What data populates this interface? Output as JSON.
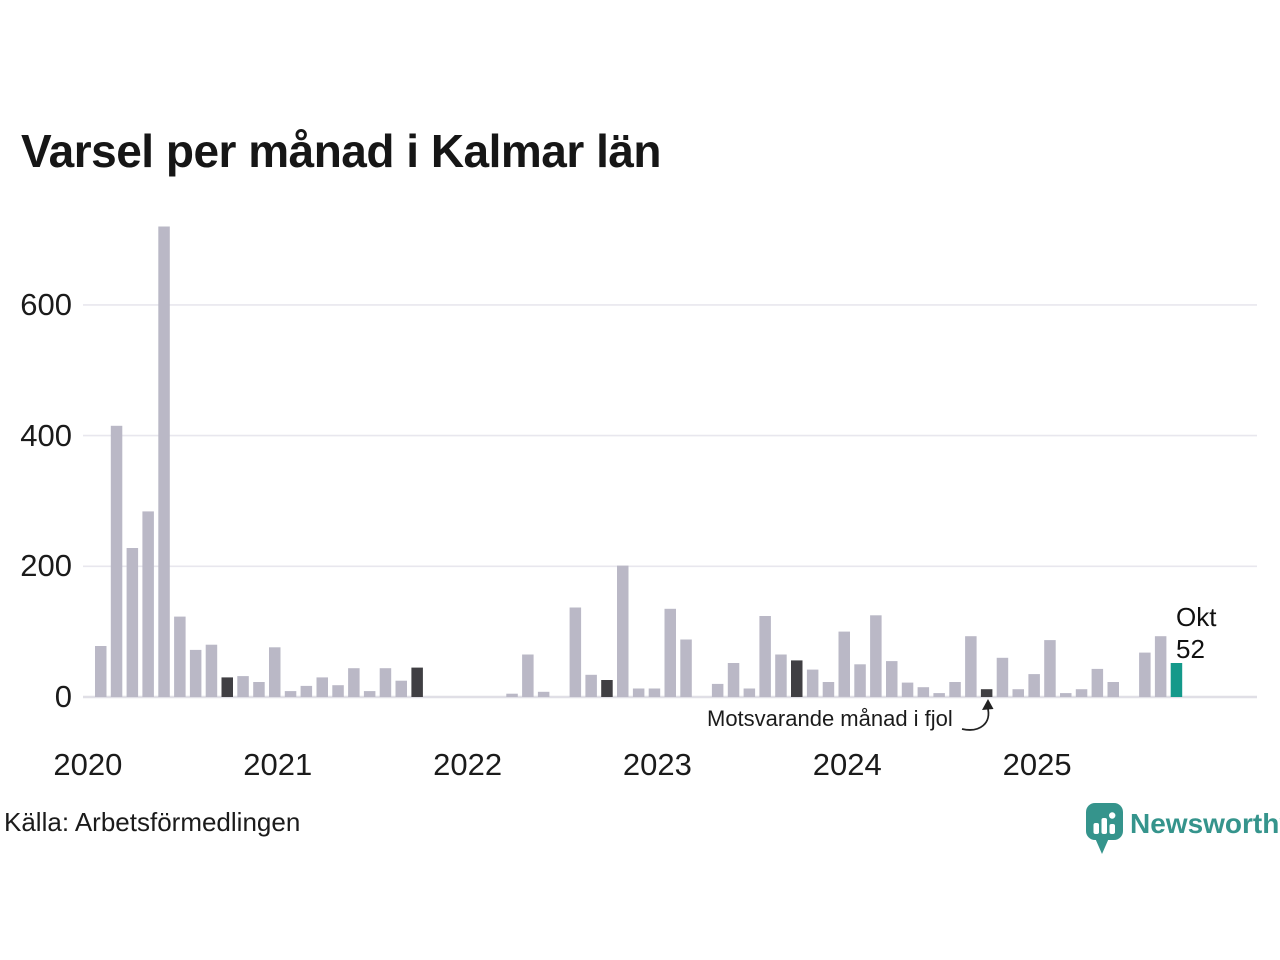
{
  "header": {
    "title": "Varsel per månad i Kalmar län"
  },
  "annotation": {
    "text": "Motsvarande månad i fjol"
  },
  "last_point_label": {
    "month": "Okt",
    "value": "52"
  },
  "footer": {
    "source": "Källa: Arbetsförmedlingen",
    "brand": "Newsworthy"
  },
  "colors": {
    "bar": "#bab8c6",
    "dark": "#403f43",
    "teal": "#14998a",
    "grid": "#e8e7ee",
    "axis": "#e0dfe6",
    "text": "#1b1b1b",
    "brand": "#35948c",
    "annotation_arrow": "#222222"
  },
  "chart_data": {
    "type": "bar",
    "title": "Varsel per månad i Kalmar län",
    "xlabel": "",
    "ylabel": "",
    "ylim": [
      0,
      730
    ],
    "yticks": [
      0,
      200,
      400,
      600
    ],
    "xticks": [
      "2020",
      "2021",
      "2022",
      "2023",
      "2024",
      "2025"
    ],
    "grid": "horizontal",
    "legend": "none",
    "x": [
      "2020-01",
      "2020-02",
      "2020-03",
      "2020-04",
      "2020-05",
      "2020-06",
      "2020-07",
      "2020-08",
      "2020-09",
      "2020-10",
      "2020-11",
      "2020-12",
      "2021-01",
      "2021-02",
      "2021-03",
      "2021-04",
      "2021-05",
      "2021-06",
      "2021-07",
      "2021-08",
      "2021-09",
      "2021-10",
      "2021-11",
      "2021-12",
      "2022-01",
      "2022-02",
      "2022-03",
      "2022-04",
      "2022-05",
      "2022-06",
      "2022-07",
      "2022-08",
      "2022-09",
      "2022-10",
      "2022-11",
      "2022-12",
      "2023-01",
      "2023-02",
      "2023-03",
      "2023-04",
      "2023-05",
      "2023-06",
      "2023-07",
      "2023-08",
      "2023-09",
      "2023-10",
      "2023-11",
      "2023-12",
      "2024-01",
      "2024-02",
      "2024-03",
      "2024-04",
      "2024-05",
      "2024-06",
      "2024-07",
      "2024-08",
      "2024-09",
      "2024-10",
      "2024-11",
      "2024-12",
      "2025-01",
      "2025-02",
      "2025-03",
      "2025-04",
      "2025-05",
      "2025-06",
      "2025-07",
      "2025-08",
      "2025-09",
      "2025-10"
    ],
    "values": [
      0,
      78,
      415,
      228,
      284,
      720,
      123,
      72,
      80,
      30,
      32,
      23,
      76,
      9,
      17,
      30,
      18,
      44,
      9,
      44,
      25,
      45,
      0,
      0,
      0,
      0,
      0,
      5,
      65,
      8,
      0,
      137,
      34,
      26,
      201,
      13,
      13,
      135,
      88,
      0,
      20,
      52,
      13,
      124,
      65,
      56,
      42,
      23,
      100,
      50,
      125,
      55,
      22,
      15,
      6,
      23,
      93,
      12,
      60,
      12,
      35,
      87,
      6,
      12,
      43,
      23,
      0,
      68,
      93,
      52
    ],
    "dark_indices": [
      9,
      21,
      33,
      45,
      57
    ],
    "teal_index": 69,
    "series_note": "dark bars = Okt each year (Motsvarande månad i fjol), teal bar = Okt 2025 (52)"
  }
}
